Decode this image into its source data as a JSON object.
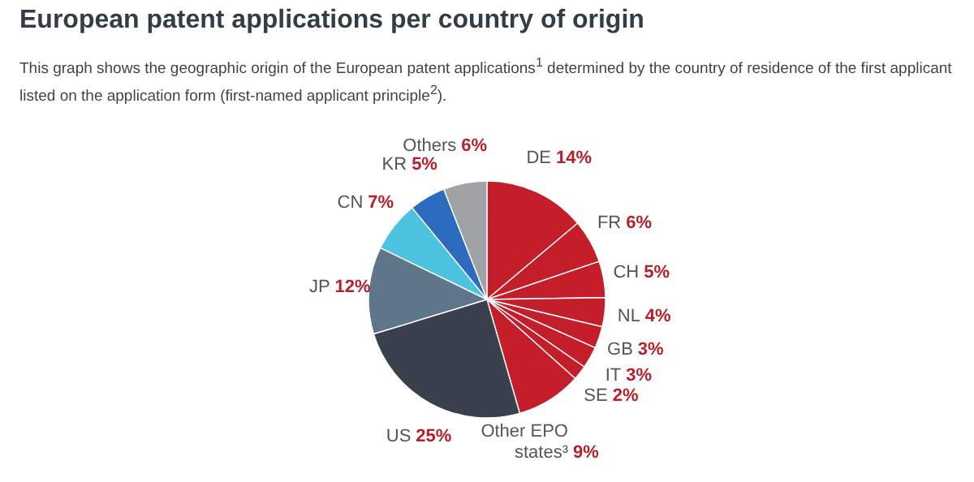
{
  "chart_data": {
    "type": "pie",
    "title": "European patent applications per country of origin",
    "subtitle": "This graph shows the geographic origin of the European patent applications$^{1}$ determined by the country of residence of the first applicant listed on the application form (first-named applicant principle$^{2}$).",
    "categories": [
      "DE",
      "FR",
      "CH",
      "NL",
      "GB",
      "IT",
      "SE",
      "Other EPO states³",
      "US",
      "JP",
      "CN",
      "KR",
      "Others"
    ],
    "values": [
      14,
      6,
      5,
      4,
      3,
      3,
      2,
      9,
      25,
      12,
      7,
      5,
      6
    ],
    "value_labels": [
      "14%",
      "6%",
      "5%",
      "4%",
      "3%",
      "3%",
      "2%",
      "9%",
      "25%",
      "12%",
      "7%",
      "5%",
      "6%"
    ],
    "colors": [
      "#c41e2a",
      "#c41e2a",
      "#c41e2a",
      "#c41e2a",
      "#c41e2a",
      "#c41e2a",
      "#c41e2a",
      "#c41e2a",
      "#3b414c",
      "#5d7689",
      "#4cc3df",
      "#2b6cbf",
      "#a0a3a6"
    ]
  }
}
